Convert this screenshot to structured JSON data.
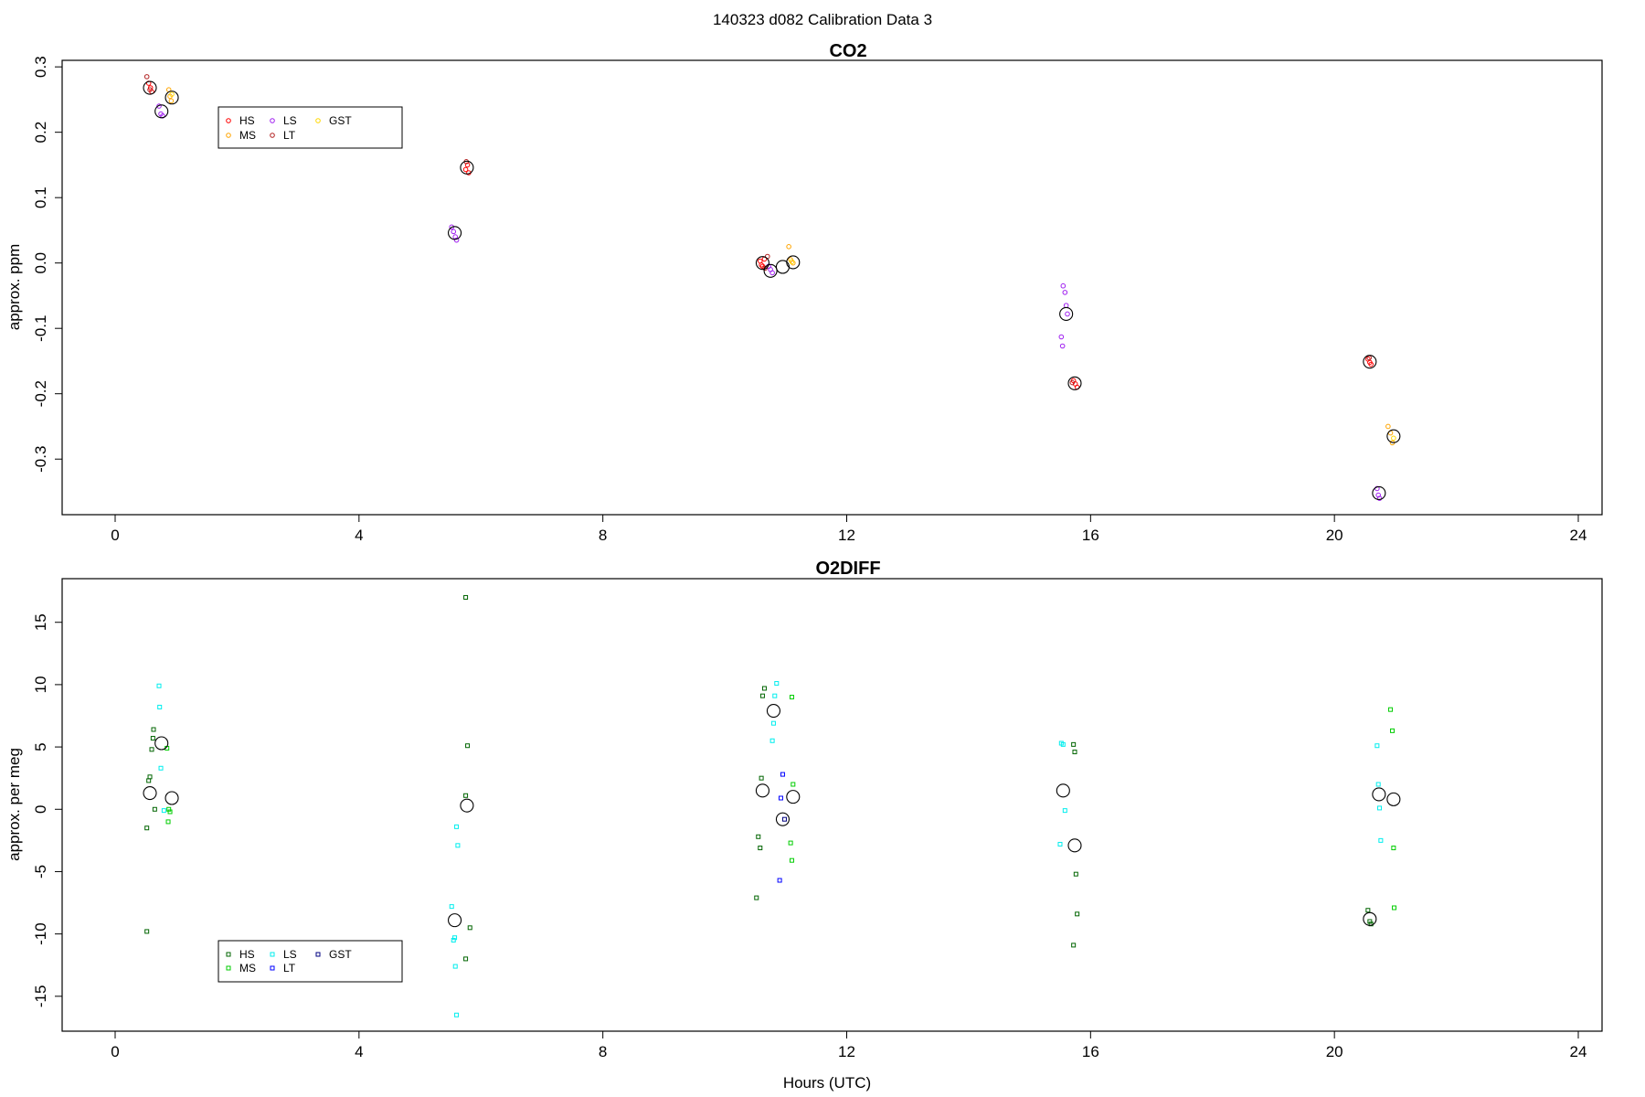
{
  "page": {
    "title": "140323   d082   Calibration Data 3"
  },
  "colors": {
    "HS_co2": "#ff0000",
    "MS_co2": "#ffa500",
    "LS_co2": "#a020f0",
    "LT_co2": "#b22222",
    "GST_co2": "#ffd700",
    "HS_o2": "#006400",
    "MS_o2": "#00cd00",
    "LS_o2": "#00eeee",
    "LT_o2": "#0000ff",
    "GST_o2": "#000080",
    "mean": "#000000"
  },
  "chart_data": [
    {
      "type": "scatter",
      "title": "CO2",
      "xlabel": "",
      "ylabel": "approx. ppm",
      "xlim": [
        -0.9,
        24.4
      ],
      "ylim": [
        -0.385,
        0.31
      ],
      "xticks": [
        "0",
        "4",
        "8",
        "12",
        "16",
        "20",
        "24"
      ],
      "yticks": [
        "0.3",
        "0.2",
        "0.1",
        "0.0",
        "-0.1",
        "-0.2",
        "-0.3"
      ],
      "legend": {
        "placement": "top-left",
        "entries": [
          {
            "label": "HS",
            "color_key": "HS_co2"
          },
          {
            "label": "MS",
            "color_key": "MS_co2"
          },
          {
            "label": "LS",
            "color_key": "LS_co2"
          },
          {
            "label": "LT",
            "color_key": "LT_co2"
          },
          {
            "label": "GST",
            "color_key": "GST_co2"
          }
        ]
      },
      "series": [
        {
          "name": "HS",
          "color_key": "HS_co2",
          "points": [
            [
              0.55,
              0.275
            ],
            [
              0.58,
              0.268
            ],
            [
              0.6,
              0.262
            ],
            [
              5.78,
              0.15
            ],
            [
              5.75,
              0.143
            ],
            [
              5.8,
              0.138
            ],
            [
              10.58,
              0.003
            ],
            [
              10.6,
              -0.003
            ],
            [
              10.65,
              0.006
            ],
            [
              10.62,
              -0.005
            ],
            [
              15.72,
              -0.18
            ],
            [
              15.75,
              -0.185
            ],
            [
              15.78,
              -0.19
            ],
            [
              20.55,
              -0.147
            ],
            [
              20.58,
              -0.152
            ],
            [
              20.6,
              -0.155
            ]
          ]
        },
        {
          "name": "MS",
          "color_key": "MS_co2",
          "points": [
            [
              0.88,
              0.265
            ],
            [
              0.9,
              0.255
            ],
            [
              0.92,
              0.248
            ],
            [
              11.05,
              0.025
            ],
            [
              11.08,
              0.005
            ],
            [
              11.12,
              0.0
            ],
            [
              20.88,
              -0.25
            ],
            [
              20.92,
              -0.26
            ],
            [
              20.95,
              -0.275
            ]
          ]
        },
        {
          "name": "LS",
          "color_key": "LS_co2",
          "points": [
            [
              0.72,
              0.24
            ],
            [
              0.75,
              0.228
            ],
            [
              0.78,
              0.225
            ],
            [
              5.52,
              0.055
            ],
            [
              5.55,
              0.048
            ],
            [
              5.58,
              0.04
            ],
            [
              5.6,
              0.035
            ],
            [
              10.72,
              -0.005
            ],
            [
              10.75,
              -0.01
            ],
            [
              10.78,
              -0.015
            ],
            [
              15.55,
              -0.035
            ],
            [
              15.58,
              -0.045
            ],
            [
              15.6,
              -0.065
            ],
            [
              15.52,
              -0.113
            ],
            [
              15.54,
              -0.127
            ],
            [
              15.62,
              -0.078
            ],
            [
              20.7,
              -0.345
            ],
            [
              20.72,
              -0.355
            ],
            [
              20.74,
              -0.36
            ]
          ]
        },
        {
          "name": "LT",
          "color_key": "LT_co2",
          "points": [
            [
              0.52,
              0.285
            ],
            [
              0.57,
              0.265
            ],
            [
              5.76,
              0.155
            ],
            [
              10.7,
              0.01
            ],
            [
              10.66,
              -0.008
            ],
            [
              15.7,
              -0.183
            ],
            [
              20.57,
              -0.145
            ]
          ]
        },
        {
          "name": "GST",
          "color_key": "GST_co2",
          "points": [
            [
              0.93,
              0.258
            ],
            [
              11.1,
              0.002
            ],
            [
              20.97,
              -0.268
            ]
          ]
        },
        {
          "name": "",
          "color_key": "mean",
          "marker": "large",
          "points": [
            [
              0.57,
              0.268
            ],
            [
              0.76,
              0.232
            ],
            [
              0.93,
              0.253
            ],
            [
              5.57,
              0.046
            ],
            [
              5.77,
              0.146
            ],
            [
              10.62,
              0.0
            ],
            [
              10.75,
              -0.012
            ],
            [
              10.95,
              -0.006
            ],
            [
              11.12,
              0.001
            ],
            [
              15.6,
              -0.078
            ],
            [
              15.74,
              -0.184
            ],
            [
              20.58,
              -0.151
            ],
            [
              20.73,
              -0.352
            ],
            [
              20.97,
              -0.265
            ]
          ]
        }
      ]
    },
    {
      "type": "scatter",
      "title": "O2DIFF",
      "xlabel": "Hours (UTC)",
      "ylabel": "approx. per meg",
      "xlim": [
        -0.9,
        24.4
      ],
      "ylim": [
        -17.8,
        18.5
      ],
      "xticks": [
        "0",
        "4",
        "8",
        "12",
        "16",
        "20",
        "24"
      ],
      "yticks": [
        "15",
        "10",
        "5",
        "0",
        "-5",
        "-10",
        "-15"
      ],
      "legend": {
        "placement": "bottom-left",
        "entries": [
          {
            "label": "HS",
            "color_key": "HS_o2"
          },
          {
            "label": "MS",
            "color_key": "MS_o2"
          },
          {
            "label": "LS",
            "color_key": "LS_o2"
          },
          {
            "label": "LT",
            "color_key": "LT_o2"
          },
          {
            "label": "GST",
            "color_key": "GST_o2"
          }
        ]
      },
      "series": [
        {
          "name": "HS",
          "color_key": "HS_o2",
          "points": [
            [
              0.52,
              -9.8
            ],
            [
              0.52,
              -1.5
            ],
            [
              0.55,
              2.3
            ],
            [
              0.57,
              2.6
            ],
            [
              0.6,
              4.8
            ],
            [
              0.62,
              5.7
            ],
            [
              0.63,
              6.4
            ],
            [
              0.65,
              0.0
            ],
            [
              5.75,
              17.0
            ],
            [
              5.78,
              5.1
            ],
            [
              5.75,
              1.1
            ],
            [
              5.82,
              -9.5
            ],
            [
              5.75,
              -12.0
            ],
            [
              10.52,
              -7.1
            ],
            [
              10.55,
              -2.2
            ],
            [
              10.58,
              -3.1
            ],
            [
              10.6,
              2.5
            ],
            [
              10.62,
              9.1
            ],
            [
              10.65,
              9.7
            ],
            [
              15.72,
              5.2
            ],
            [
              15.74,
              4.6
            ],
            [
              15.76,
              -5.2
            ],
            [
              15.78,
              -8.4
            ],
            [
              15.72,
              -10.9
            ],
            [
              20.55,
              -8.1
            ],
            [
              20.58,
              -9.0
            ],
            [
              20.6,
              -9.2
            ]
          ]
        },
        {
          "name": "MS",
          "color_key": "MS_o2",
          "points": [
            [
              0.85,
              4.9
            ],
            [
              0.88,
              0.0
            ],
            [
              0.9,
              -0.2
            ],
            [
              0.87,
              -1.0
            ],
            [
              11.1,
              9.0
            ],
            [
              11.12,
              2.0
            ],
            [
              11.08,
              -2.7
            ],
            [
              11.1,
              -4.1
            ],
            [
              20.92,
              8.0
            ],
            [
              20.95,
              6.3
            ],
            [
              20.97,
              -3.1
            ],
            [
              20.98,
              -7.9
            ]
          ]
        },
        {
          "name": "LS",
          "color_key": "LS_o2",
          "points": [
            [
              0.72,
              9.9
            ],
            [
              0.73,
              8.2
            ],
            [
              0.75,
              3.3
            ],
            [
              0.8,
              -0.1
            ],
            [
              5.52,
              -7.8
            ],
            [
              5.55,
              -10.5
            ],
            [
              5.57,
              -10.3
            ],
            [
              5.6,
              -1.4
            ],
            [
              5.62,
              -2.9
            ],
            [
              5.58,
              -12.6
            ],
            [
              5.6,
              -16.5
            ],
            [
              10.85,
              10.1
            ],
            [
              10.82,
              9.1
            ],
            [
              10.8,
              6.9
            ],
            [
              10.78,
              5.5
            ],
            [
              15.52,
              5.3
            ],
            [
              15.55,
              5.2
            ],
            [
              15.58,
              -0.1
            ],
            [
              15.5,
              -2.8
            ],
            [
              20.7,
              5.1
            ],
            [
              20.72,
              2.0
            ],
            [
              20.74,
              0.1
            ],
            [
              20.76,
              -2.5
            ]
          ]
        },
        {
          "name": "LT",
          "color_key": "LT_o2",
          "points": [
            [
              10.95,
              2.8
            ],
            [
              10.92,
              0.9
            ],
            [
              10.9,
              -5.7
            ]
          ]
        },
        {
          "name": "GST",
          "color_key": "GST_o2",
          "points": [
            [
              10.98,
              -0.8
            ]
          ]
        },
        {
          "name": "",
          "color_key": "mean",
          "marker": "large",
          "points": [
            [
              0.57,
              1.3
            ],
            [
              0.76,
              5.3
            ],
            [
              0.93,
              0.9
            ],
            [
              5.57,
              -8.9
            ],
            [
              5.77,
              0.3
            ],
            [
              10.62,
              1.5
            ],
            [
              10.8,
              7.9
            ],
            [
              10.95,
              -0.8
            ],
            [
              11.12,
              1.0
            ],
            [
              15.55,
              1.5
            ],
            [
              15.74,
              -2.9
            ],
            [
              20.58,
              -8.8
            ],
            [
              20.73,
              1.2
            ],
            [
              20.97,
              0.8
            ]
          ]
        }
      ]
    }
  ]
}
